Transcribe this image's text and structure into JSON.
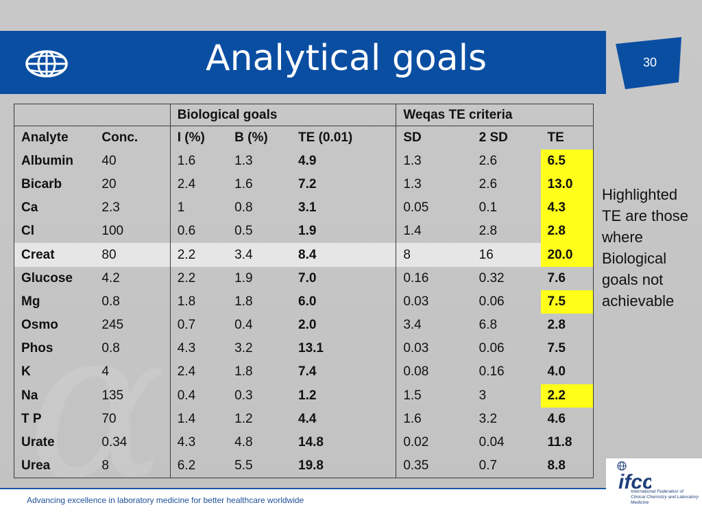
{
  "header": {
    "title": "Analytical goals",
    "page_number": "30",
    "brand_color": "#0a4ea2"
  },
  "table": {
    "group_headers": {
      "biological": "Biological goals",
      "weqas": "Weqas TE criteria"
    },
    "columns": [
      "Analyte",
      "Conc.",
      "I (%)",
      "B (%)",
      "TE (0.01)",
      "SD",
      "2 SD",
      "TE"
    ],
    "rows": [
      [
        "Albumin",
        "40",
        "1.6",
        "1.3",
        "4.9",
        "1.3",
        "2.6",
        "6.5"
      ],
      [
        "Bicarb",
        "20",
        "2.4",
        "1.6",
        "7.2",
        "1.3",
        "2.6",
        "13.0"
      ],
      [
        "Ca",
        "2.3",
        "1",
        "0.8",
        "3.1",
        "0.05",
        "0.1",
        "4.3"
      ],
      [
        "Cl",
        "100",
        "0.6",
        "0.5",
        "1.9",
        "1.4",
        "2.8",
        "2.8"
      ],
      [
        "Creat",
        "80",
        "2.2",
        "3.4",
        "8.4",
        "8",
        "16",
        "20.0"
      ],
      [
        "Glucose",
        "4.2",
        "2.2",
        "1.9",
        "7.0",
        "0.16",
        "0.32",
        "7.6"
      ],
      [
        "Mg",
        "0.8",
        "1.8",
        "1.8",
        "6.0",
        "0.03",
        "0.06",
        "7.5"
      ],
      [
        "Osmo",
        "245",
        "0.7",
        "0.4",
        "2.0",
        "3.4",
        "6.8",
        "2.8"
      ],
      [
        "Phos",
        "0.8",
        "4.3",
        "3.2",
        "13.1",
        "0.03",
        "0.06",
        "7.5"
      ],
      [
        "K",
        "4",
        "2.4",
        "1.8",
        "7.4",
        "0.08",
        "0.16",
        "4.0"
      ],
      [
        "Na",
        "135",
        "0.4",
        "0.3",
        "1.2",
        "1.5",
        "3",
        "2.2"
      ],
      [
        "T P",
        "70",
        "1.4",
        "1.2",
        "4.4",
        "1.6",
        "3.2",
        "4.6"
      ],
      [
        "Urate",
        "0.34",
        "4.3",
        "4.8",
        "14.8",
        "0.02",
        "0.04",
        "11.8"
      ],
      [
        "Urea",
        "8",
        "6.2",
        "5.5",
        "19.8",
        "0.35",
        "0.7",
        "8.8"
      ]
    ],
    "highlighted_te_rows": [
      0,
      1,
      2,
      3,
      4,
      6,
      10
    ],
    "highlight_color": "#ffff1a"
  },
  "side_note": "Highlighted TE are those where Biological goals not achievable",
  "footer": {
    "tagline": "Advancing excellence in laboratory medicine for better healthcare worldwide",
    "logo_text": "ifcc",
    "org_name": "International Federation of Clinical Chemistry and Laboratory Medicine"
  }
}
